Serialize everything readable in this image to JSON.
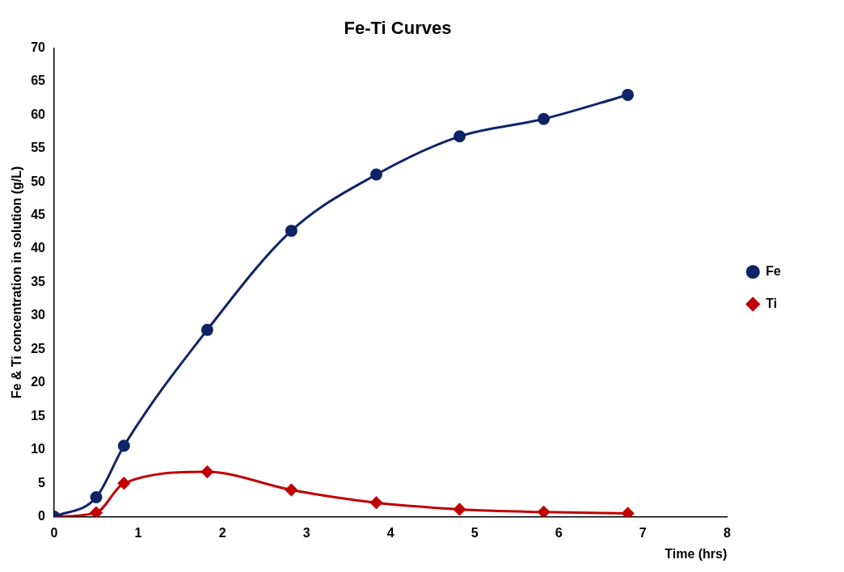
{
  "chart_data": {
    "type": "line",
    "title": "Fe-Ti Curves",
    "xlabel": "Time (hrs)",
    "ylabel": "Fe & Ti concentration in solution (g/L)",
    "xlim": [
      0,
      8
    ],
    "xticks": [
      0,
      1,
      2,
      3,
      4,
      5,
      6,
      7,
      8
    ],
    "ylim": [
      0,
      70
    ],
    "yticks": [
      0,
      5,
      10,
      15,
      20,
      25,
      30,
      35,
      40,
      45,
      50,
      55,
      60,
      65,
      70
    ],
    "grid": false,
    "legend": "right",
    "series": [
      {
        "name": "Fe",
        "color": "#0f2466",
        "marker": "circle",
        "x": [
          0,
          0.5,
          0.83,
          1.82,
          2.82,
          3.83,
          4.82,
          5.82,
          6.82
        ],
        "values": [
          0,
          2.9,
          10.6,
          27.9,
          42.7,
          51.1,
          56.8,
          59.4,
          63.0
        ]
      },
      {
        "name": "Ti",
        "color": "#c00000",
        "marker": "diamond",
        "x": [
          0,
          0.5,
          0.83,
          1.82,
          2.82,
          3.83,
          4.82,
          5.82,
          6.82
        ],
        "values": [
          0,
          0.6,
          5.0,
          6.7,
          4.0,
          2.1,
          1.1,
          0.7,
          0.5
        ]
      }
    ]
  }
}
